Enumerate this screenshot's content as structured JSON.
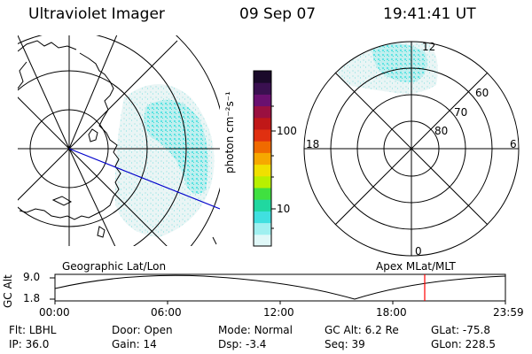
{
  "header": {
    "title": "Ultraviolet Imager",
    "date": "09 Sep 07",
    "time": "19:41:41 UT"
  },
  "colorbar": {
    "label": "photon cm⁻²s⁻¹",
    "ticks": [
      "100",
      "10"
    ],
    "colors": [
      "#1a0a2a",
      "#3a1050",
      "#6a1070",
      "#9a1040",
      "#c01818",
      "#e03010",
      "#f06a00",
      "#f6a800",
      "#f0e000",
      "#b8f000",
      "#40e040",
      "#20d8a0",
      "#40e0e0",
      "#a0f0f0",
      "#e0f8f8"
    ]
  },
  "left_panel": {
    "caption": "Geographic Lat/Lon"
  },
  "right_panel": {
    "caption": "Apex MLat/MLT",
    "mlt_labels": {
      "top": "12",
      "left": "18",
      "right": "6",
      "bottom": "0"
    },
    "lat_labels": [
      "60",
      "70",
      "80"
    ]
  },
  "timeline": {
    "ylabel": "GC Alt",
    "y_ticks": [
      "9.0",
      "1.8"
    ],
    "x_ticks": [
      "00:00",
      "06:00",
      "12:00",
      "18:00",
      "23:59"
    ],
    "marker_time": "19:41",
    "marker_color": "#ff0000"
  },
  "info": {
    "row1": [
      {
        "label": "Flt:",
        "value": "LBHL"
      },
      {
        "label": "Door:",
        "value": "Open"
      },
      {
        "label": "Mode:",
        "value": "Normal"
      },
      {
        "label": "GC Alt:",
        "value": "6.2 Re"
      },
      {
        "label": "GLat:",
        "value": "-75.8"
      }
    ],
    "row2": [
      {
        "label": "IP:",
        "value": "36.0"
      },
      {
        "label": "Gain:",
        "value": "14"
      },
      {
        "label": "Dsp:",
        "value": "-3.4"
      },
      {
        "label": "Seq:",
        "value": "39"
      },
      {
        "label": "GLon:",
        "value": "228.5"
      }
    ]
  }
}
